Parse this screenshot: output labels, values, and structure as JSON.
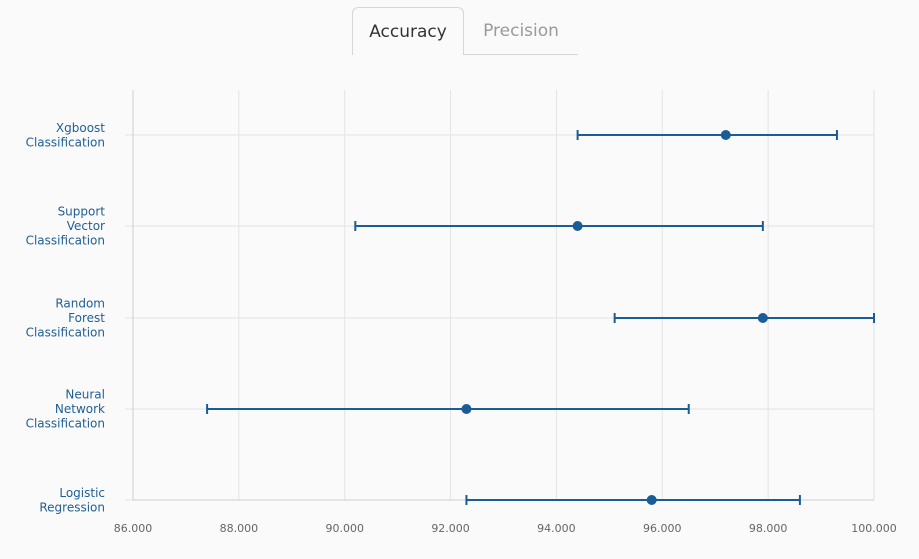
{
  "tabs": [
    {
      "label": "Accuracy",
      "active": true
    },
    {
      "label": "Precision",
      "active": false
    }
  ],
  "colors": {
    "series": "#1a5d96",
    "label": "#1f5f94",
    "grid": "#e3e3e3",
    "axis": "#cfcfcf",
    "tick_text": "#666666"
  },
  "chart_data": {
    "type": "scatter",
    "subtype": "error-bar",
    "orientation": "horizontal",
    "title": "",
    "xlabel": "",
    "ylabel": "",
    "xlim": [
      86,
      100
    ],
    "xticks": [
      "86.000",
      "88.000",
      "90.000",
      "92.000",
      "94.000",
      "96.000",
      "98.000",
      "100.000"
    ],
    "grid": true,
    "categories": [
      [
        "Xgboost",
        "Classification"
      ],
      [
        "Support",
        "Vector",
        "Classification"
      ],
      [
        "Random",
        "Forest",
        "Classification"
      ],
      [
        "Neural",
        "Network",
        "Classification"
      ],
      [
        "Logistic",
        "Regression"
      ]
    ],
    "values": [
      97.2,
      94.4,
      97.9,
      92.3,
      95.8
    ],
    "lower": [
      94.4,
      90.2,
      95.1,
      87.4,
      92.3
    ],
    "upper": [
      99.3,
      97.9,
      100.0,
      96.5,
      98.6
    ]
  }
}
